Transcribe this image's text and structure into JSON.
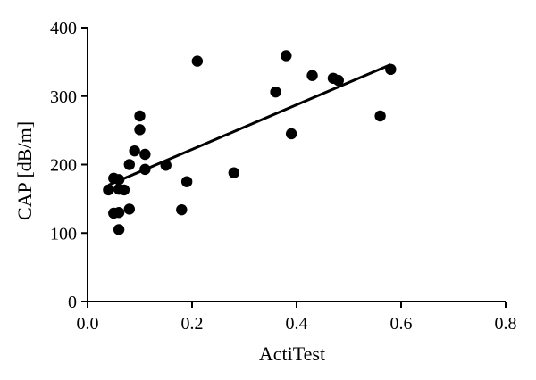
{
  "chart_data": {
    "type": "scatter",
    "title": "",
    "xlabel": "ActiTest",
    "ylabel": "CAP [dB/m]",
    "xlim": [
      0,
      0.8
    ],
    "ylim": [
      0,
      400
    ],
    "x_ticks": [
      0.0,
      0.2,
      0.4,
      0.6,
      0.8
    ],
    "x_tick_labels": [
      "0.0",
      "0.2",
      "0.4",
      "0.6",
      "0.8"
    ],
    "y_ticks": [
      0,
      100,
      200,
      300,
      400
    ],
    "y_tick_labels": [
      "0",
      "100",
      "200",
      "300",
      "400"
    ],
    "grid": false,
    "legend": "none",
    "series": [
      {
        "points": [
          {
            "x": 0.04,
            "y": 163
          },
          {
            "x": 0.05,
            "y": 180
          },
          {
            "x": 0.05,
            "y": 129
          },
          {
            "x": 0.06,
            "y": 178
          },
          {
            "x": 0.06,
            "y": 164
          },
          {
            "x": 0.06,
            "y": 130
          },
          {
            "x": 0.06,
            "y": 105
          },
          {
            "x": 0.07,
            "y": 163
          },
          {
            "x": 0.08,
            "y": 200
          },
          {
            "x": 0.08,
            "y": 135
          },
          {
            "x": 0.09,
            "y": 220
          },
          {
            "x": 0.1,
            "y": 271
          },
          {
            "x": 0.1,
            "y": 251
          },
          {
            "x": 0.11,
            "y": 215
          },
          {
            "x": 0.11,
            "y": 193
          },
          {
            "x": 0.15,
            "y": 199
          },
          {
            "x": 0.18,
            "y": 134
          },
          {
            "x": 0.19,
            "y": 175
          },
          {
            "x": 0.21,
            "y": 351
          },
          {
            "x": 0.28,
            "y": 188
          },
          {
            "x": 0.36,
            "y": 306
          },
          {
            "x": 0.38,
            "y": 359
          },
          {
            "x": 0.39,
            "y": 245
          },
          {
            "x": 0.43,
            "y": 330
          },
          {
            "x": 0.47,
            "y": 326
          },
          {
            "x": 0.48,
            "y": 323
          },
          {
            "x": 0.56,
            "y": 271
          },
          {
            "x": 0.58,
            "y": 339
          }
        ]
      }
    ],
    "trendline": {
      "x": [
        0.04,
        0.58
      ],
      "y": [
        170,
        346
      ]
    }
  }
}
